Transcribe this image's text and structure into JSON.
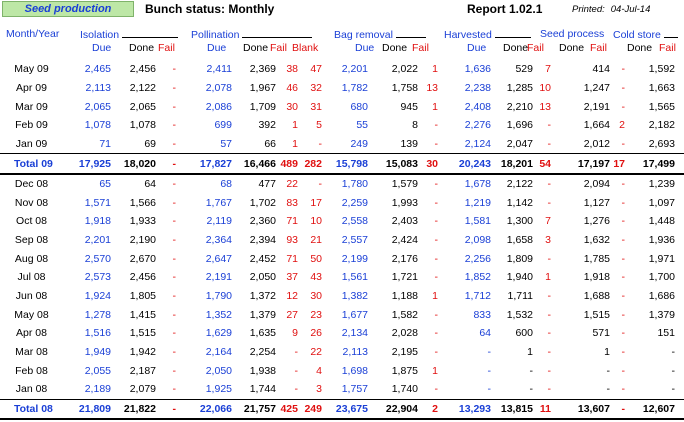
{
  "header": {
    "badge": "Seed production",
    "title": "Bunch status: Monthly",
    "report": "Report 1.02.1",
    "printed_label": "Printed:",
    "printed_date": "04-Jul-14"
  },
  "columns": {
    "month_year": "Month/Year",
    "isolation": "Isolation",
    "pollination": "Pollination",
    "bag_removal": "Bag removal",
    "harvested": "Harvested",
    "seed_process": "Seed process",
    "cold_store": "Cold store",
    "due": "Due",
    "done": "Done",
    "fail": "Fail",
    "blank": "Blank"
  },
  "rows": [
    {
      "label": "May 09",
      "iso_due": "2,465",
      "iso_done": "2,456",
      "iso_fail": "-",
      "pol_due": "2,411",
      "pol_done": "2,369",
      "pol_fail": "38",
      "pol_blank": "47",
      "bag_due": "2,201",
      "bag_done": "2,022",
      "bag_fail": "1",
      "har_due": "1,636",
      "har_done": "529",
      "har_fail": "7",
      "sp_done": "414",
      "sp_fail": "-",
      "cs_done": "1,592",
      "cs_fail": "-"
    },
    {
      "label": "Apr 09",
      "iso_due": "2,113",
      "iso_done": "2,122",
      "iso_fail": "-",
      "pol_due": "2,078",
      "pol_done": "1,967",
      "pol_fail": "46",
      "pol_blank": "32",
      "bag_due": "1,782",
      "bag_done": "1,758",
      "bag_fail": "13",
      "har_due": "2,238",
      "har_done": "1,285",
      "har_fail": "10",
      "sp_done": "1,247",
      "sp_fail": "-",
      "cs_done": "1,663",
      "cs_fail": "-"
    },
    {
      "label": "Mar 09",
      "iso_due": "2,065",
      "iso_done": "2,065",
      "iso_fail": "-",
      "pol_due": "2,086",
      "pol_done": "1,709",
      "pol_fail": "30",
      "pol_blank": "31",
      "bag_due": "680",
      "bag_done": "945",
      "bag_fail": "1",
      "har_due": "2,408",
      "har_done": "2,210",
      "har_fail": "13",
      "sp_done": "2,191",
      "sp_fail": "-",
      "cs_done": "1,565",
      "cs_fail": "-"
    },
    {
      "label": "Feb 09",
      "iso_due": "1,078",
      "iso_done": "1,078",
      "iso_fail": "-",
      "pol_due": "699",
      "pol_done": "392",
      "pol_fail": "1",
      "pol_blank": "5",
      "bag_due": "55",
      "bag_done": "8",
      "bag_fail": "-",
      "har_due": "2,276",
      "har_done": "1,696",
      "har_fail": "-",
      "sp_done": "1,664",
      "sp_fail": "2",
      "cs_done": "2,182",
      "cs_fail": "-"
    },
    {
      "label": "Jan 09",
      "iso_due": "71",
      "iso_done": "69",
      "iso_fail": "-",
      "pol_due": "57",
      "pol_done": "66",
      "pol_fail": "1",
      "pol_blank": "-",
      "bag_due": "249",
      "bag_done": "139",
      "bag_fail": "-",
      "har_due": "2,124",
      "har_done": "2,047",
      "har_fail": "-",
      "sp_done": "2,012",
      "sp_fail": "-",
      "cs_done": "2,693",
      "cs_fail": "-"
    },
    {
      "total": true,
      "label": "Total 09",
      "iso_due": "17,925",
      "iso_done": "18,020",
      "iso_fail": "-",
      "pol_due": "17,827",
      "pol_done": "16,466",
      "pol_fail": "489",
      "pol_blank": "282",
      "bag_due": "15,798",
      "bag_done": "15,083",
      "bag_fail": "30",
      "har_due": "20,243",
      "har_done": "18,201",
      "har_fail": "54",
      "sp_done": "17,197",
      "sp_fail": "17",
      "cs_done": "17,499",
      "cs_fail": "-"
    },
    {
      "label": "Dec 08",
      "iso_due": "65",
      "iso_done": "64",
      "iso_fail": "-",
      "pol_due": "68",
      "pol_done": "477",
      "pol_fail": "22",
      "pol_blank": "-",
      "bag_due": "1,780",
      "bag_done": "1,579",
      "bag_fail": "-",
      "har_due": "1,678",
      "har_done": "2,122",
      "har_fail": "-",
      "sp_done": "2,094",
      "sp_fail": "-",
      "cs_done": "1,239",
      "cs_fail": "-"
    },
    {
      "label": "Nov 08",
      "iso_due": "1,571",
      "iso_done": "1,566",
      "iso_fail": "-",
      "pol_due": "1,767",
      "pol_done": "1,702",
      "pol_fail": "83",
      "pol_blank": "17",
      "bag_due": "2,259",
      "bag_done": "1,993",
      "bag_fail": "-",
      "har_due": "1,219",
      "har_done": "1,142",
      "har_fail": "-",
      "sp_done": "1,127",
      "sp_fail": "-",
      "cs_done": "1,097",
      "cs_fail": "-"
    },
    {
      "label": "Oct 08",
      "iso_due": "1,918",
      "iso_done": "1,933",
      "iso_fail": "-",
      "pol_due": "2,119",
      "pol_done": "2,360",
      "pol_fail": "71",
      "pol_blank": "10",
      "bag_due": "2,558",
      "bag_done": "2,403",
      "bag_fail": "-",
      "har_due": "1,581",
      "har_done": "1,300",
      "har_fail": "7",
      "sp_done": "1,276",
      "sp_fail": "-",
      "cs_done": "1,448",
      "cs_fail": "-"
    },
    {
      "label": "Sep 08",
      "iso_due": "2,201",
      "iso_done": "2,190",
      "iso_fail": "-",
      "pol_due": "2,364",
      "pol_done": "2,394",
      "pol_fail": "93",
      "pol_blank": "21",
      "bag_due": "2,557",
      "bag_done": "2,424",
      "bag_fail": "-",
      "har_due": "2,098",
      "har_done": "1,658",
      "har_fail": "3",
      "sp_done": "1,632",
      "sp_fail": "-",
      "cs_done": "1,936",
      "cs_fail": "-"
    },
    {
      "label": "Aug 08",
      "iso_due": "2,570",
      "iso_done": "2,670",
      "iso_fail": "-",
      "pol_due": "2,647",
      "pol_done": "2,452",
      "pol_fail": "71",
      "pol_blank": "50",
      "bag_due": "2,199",
      "bag_done": "2,176",
      "bag_fail": "-",
      "har_due": "2,256",
      "har_done": "1,809",
      "har_fail": "-",
      "sp_done": "1,785",
      "sp_fail": "-",
      "cs_done": "1,971",
      "cs_fail": "-"
    },
    {
      "label": "Jul 08",
      "iso_due": "2,573",
      "iso_done": "2,456",
      "iso_fail": "-",
      "pol_due": "2,191",
      "pol_done": "2,050",
      "pol_fail": "37",
      "pol_blank": "43",
      "bag_due": "1,561",
      "bag_done": "1,721",
      "bag_fail": "-",
      "har_due": "1,852",
      "har_done": "1,940",
      "har_fail": "1",
      "sp_done": "1,918",
      "sp_fail": "-",
      "cs_done": "1,700",
      "cs_fail": "-"
    },
    {
      "label": "Jun 08",
      "iso_due": "1,924",
      "iso_done": "1,805",
      "iso_fail": "-",
      "pol_due": "1,790",
      "pol_done": "1,372",
      "pol_fail": "12",
      "pol_blank": "30",
      "bag_due": "1,382",
      "bag_done": "1,188",
      "bag_fail": "1",
      "har_due": "1,712",
      "har_done": "1,711",
      "har_fail": "-",
      "sp_done": "1,688",
      "sp_fail": "-",
      "cs_done": "1,686",
      "cs_fail": "-"
    },
    {
      "label": "May 08",
      "iso_due": "1,278",
      "iso_done": "1,415",
      "iso_fail": "-",
      "pol_due": "1,352",
      "pol_done": "1,379",
      "pol_fail": "27",
      "pol_blank": "23",
      "bag_due": "1,677",
      "bag_done": "1,582",
      "bag_fail": "-",
      "har_due": "833",
      "har_done": "1,532",
      "har_fail": "-",
      "sp_done": "1,515",
      "sp_fail": "-",
      "cs_done": "1,379",
      "cs_fail": "-"
    },
    {
      "label": "Apr 08",
      "iso_due": "1,516",
      "iso_done": "1,515",
      "iso_fail": "-",
      "pol_due": "1,629",
      "pol_done": "1,635",
      "pol_fail": "9",
      "pol_blank": "26",
      "bag_due": "2,134",
      "bag_done": "2,028",
      "bag_fail": "-",
      "har_due": "64",
      "har_done": "600",
      "har_fail": "-",
      "sp_done": "571",
      "sp_fail": "-",
      "cs_done": "151",
      "cs_fail": "-"
    },
    {
      "label": "Mar 08",
      "iso_due": "1,949",
      "iso_done": "1,942",
      "iso_fail": "-",
      "pol_due": "2,164",
      "pol_done": "2,254",
      "pol_fail": "-",
      "pol_blank": "22",
      "bag_due": "2,113",
      "bag_done": "2,195",
      "bag_fail": "-",
      "har_due": "-",
      "har_done": "1",
      "har_fail": "-",
      "sp_done": "1",
      "sp_fail": "-",
      "cs_done": "-",
      "cs_fail": "-"
    },
    {
      "label": "Feb 08",
      "iso_due": "2,055",
      "iso_done": "2,187",
      "iso_fail": "-",
      "pol_due": "2,050",
      "pol_done": "1,938",
      "pol_fail": "-",
      "pol_blank": "4",
      "bag_due": "1,698",
      "bag_done": "1,875",
      "bag_fail": "1",
      "har_due": "-",
      "har_done": "-",
      "har_fail": "-",
      "sp_done": "-",
      "sp_fail": "-",
      "cs_done": "-",
      "cs_fail": "-"
    },
    {
      "label": "Jan 08",
      "iso_due": "2,189",
      "iso_done": "2,079",
      "iso_fail": "-",
      "pol_due": "1,925",
      "pol_done": "1,744",
      "pol_fail": "-",
      "pol_blank": "3",
      "bag_due": "1,757",
      "bag_done": "1,740",
      "bag_fail": "-",
      "har_due": "-",
      "har_done": "-",
      "har_fail": "-",
      "sp_done": "-",
      "sp_fail": "-",
      "cs_done": "-",
      "cs_fail": "-"
    },
    {
      "total": true,
      "label": "Total 08",
      "iso_due": "21,809",
      "iso_done": "21,822",
      "iso_fail": "-",
      "pol_due": "22,066",
      "pol_done": "21,757",
      "pol_fail": "425",
      "pol_blank": "249",
      "bag_due": "23,675",
      "bag_done": "22,904",
      "bag_fail": "2",
      "har_due": "13,293",
      "har_done": "13,815",
      "har_fail": "11",
      "sp_done": "13,607",
      "sp_fail": "-",
      "cs_done": "12,607",
      "cs_fail": "-"
    }
  ],
  "colors": {
    "blue": "#1a3fd6",
    "red": "#e01010",
    "badge_bg": "#bde7a6"
  }
}
